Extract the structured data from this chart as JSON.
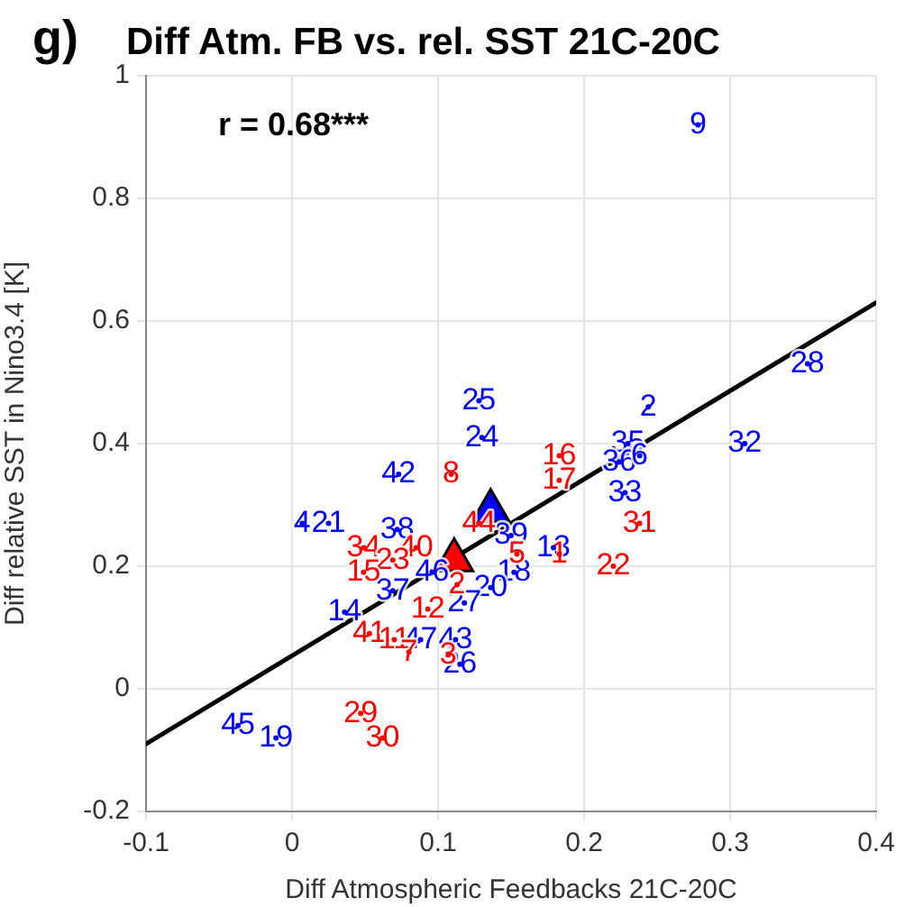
{
  "chart_data": {
    "type": "scatter",
    "title": "Diff Atm. FB vs. rel. SST 21C-20C",
    "xlabel": "Diff Atmospheric Feedbacks 21C-20C",
    "ylabel": "Diff relative SST in Nino3.4 [K]",
    "annotations": [
      "g)",
      "r = 0.68***",
      {
        "text": "9",
        "x": 0.278,
        "y": 0.92
      },
      {
        "text": "28",
        "x": 0.353,
        "y": 0.53
      },
      {
        "text": "2",
        "x": 0.244,
        "y": 0.46
      },
      {
        "text": "32",
        "x": 0.31,
        "y": 0.4
      },
      {
        "text": "35",
        "x": 0.23,
        "y": 0.4
      },
      {
        "text": "36",
        "x": 0.224,
        "y": 0.37
      },
      {
        "text": "6",
        "x": 0.238,
        "y": 0.38
      },
      {
        "text": "33",
        "x": 0.228,
        "y": 0.32
      },
      {
        "text": "25",
        "x": 0.128,
        "y": 0.47
      },
      {
        "text": "24",
        "x": 0.13,
        "y": 0.41
      },
      {
        "text": "42",
        "x": 0.073,
        "y": 0.35
      },
      {
        "text": "4",
        "x": 0.007,
        "y": 0.27
      },
      {
        "text": "21",
        "x": 0.025,
        "y": 0.27
      },
      {
        "text": "38",
        "x": 0.072,
        "y": 0.26
      },
      {
        "text": "39",
        "x": 0.15,
        "y": 0.25
      },
      {
        "text": "13",
        "x": 0.179,
        "y": 0.23
      },
      {
        "text": "18",
        "x": 0.152,
        "y": 0.19
      },
      {
        "text": "20",
        "x": 0.136,
        "y": 0.165
      },
      {
        "text": "46",
        "x": 0.096,
        "y": 0.19
      },
      {
        "text": "37",
        "x": 0.069,
        "y": 0.16
      },
      {
        "text": "27",
        "x": 0.118,
        "y": 0.14
      },
      {
        "text": "14",
        "x": 0.036,
        "y": 0.125
      },
      {
        "text": "47",
        "x": 0.088,
        "y": 0.08
      },
      {
        "text": "43",
        "x": 0.112,
        "y": 0.08
      },
      {
        "text": "26",
        "x": 0.115,
        "y": 0.04
      },
      {
        "text": "45",
        "x": -0.037,
        "y": -0.06
      },
      {
        "text": "19",
        "x": -0.011,
        "y": -0.08
      },
      {
        "text": "16",
        "x": 0.183,
        "y": 0.38
      },
      {
        "text": "17",
        "x": 0.183,
        "y": 0.34
      },
      {
        "text": "8",
        "x": 0.109,
        "y": 0.35
      },
      {
        "text": "31",
        "x": 0.238,
        "y": 0.27
      },
      {
        "text": "22",
        "x": 0.22,
        "y": 0.2
      },
      {
        "text": "44",
        "x": 0.128,
        "y": 0.27
      },
      {
        "text": "5",
        "x": 0.154,
        "y": 0.22
      },
      {
        "text": "1",
        "x": 0.183,
        "y": 0.22
      },
      {
        "text": "34",
        "x": 0.049,
        "y": 0.23
      },
      {
        "text": "40",
        "x": 0.085,
        "y": 0.23
      },
      {
        "text": "23",
        "x": 0.069,
        "y": 0.21
      },
      {
        "text": "15",
        "x": 0.049,
        "y": 0.19
      },
      {
        "text": "2",
        "x": 0.113,
        "y": 0.17
      },
      {
        "text": "12",
        "x": 0.093,
        "y": 0.13
      },
      {
        "text": "41",
        "x": 0.053,
        "y": 0.09
      },
      {
        "text": "11",
        "x": 0.07,
        "y": 0.08
      },
      {
        "text": "7",
        "x": 0.08,
        "y": 0.06
      },
      {
        "text": "3",
        "x": 0.107,
        "y": 0.055
      },
      {
        "text": "29",
        "x": 0.047,
        "y": -0.04
      },
      {
        "text": "30",
        "x": 0.062,
        "y": -0.08
      }
    ],
    "xlim": [
      -0.1,
      0.4
    ],
    "xticks": [
      -0.1,
      0,
      0.1,
      0.2,
      0.3,
      0.4
    ],
    "ylim": [
      -0.2,
      1
    ],
    "yticks": [
      -0.2,
      0,
      0.2,
      0.4,
      0.6,
      0.8,
      1
    ],
    "grid": true,
    "series": [
      {
        "marker": "circle",
        "color": "#0000ff",
        "x": [
          0.278,
          0.353,
          0.244,
          0.31,
          0.23,
          0.224,
          0.238,
          0.228,
          0.128,
          0.13,
          0.073,
          0.007,
          0.025,
          0.072,
          0.15,
          0.179,
          0.152,
          0.136,
          0.096,
          0.069,
          0.118,
          0.036,
          0.088,
          0.112,
          0.115,
          -0.037,
          -0.011
        ],
        "values": [
          0.92,
          0.53,
          0.46,
          0.4,
          0.4,
          0.37,
          0.38,
          0.32,
          0.47,
          0.41,
          0.35,
          0.27,
          0.27,
          0.26,
          0.25,
          0.23,
          0.19,
          0.165,
          0.19,
          0.16,
          0.14,
          0.125,
          0.08,
          0.08,
          0.04,
          -0.06,
          -0.08
        ]
      },
      {
        "marker": "circle",
        "color": "#ff0000",
        "x": [
          0.183,
          0.183,
          0.109,
          0.238,
          0.22,
          0.128,
          0.154,
          0.183,
          0.049,
          0.085,
          0.069,
          0.049,
          0.113,
          0.093,
          0.053,
          0.07,
          0.08,
          0.107,
          0.047,
          0.062
        ],
        "values": [
          0.38,
          0.34,
          0.35,
          0.27,
          0.2,
          0.27,
          0.22,
          0.22,
          0.23,
          0.23,
          0.21,
          0.19,
          0.17,
          0.13,
          0.09,
          0.08,
          0.06,
          0.055,
          -0.04,
          -0.08
        ]
      },
      {
        "marker": "triangle",
        "color": "#0000ff",
        "x": [
          0.136
        ],
        "values": [
          0.29
        ]
      },
      {
        "marker": "triangle",
        "color": "#ff0000",
        "x": [
          0.111
        ],
        "values": [
          0.21
        ]
      },
      {
        "type": "line",
        "line_style": "solid",
        "color": "#000000",
        "x": [
          -0.1,
          0.4
        ],
        "values": [
          -0.09,
          0.63
        ]
      }
    ]
  }
}
